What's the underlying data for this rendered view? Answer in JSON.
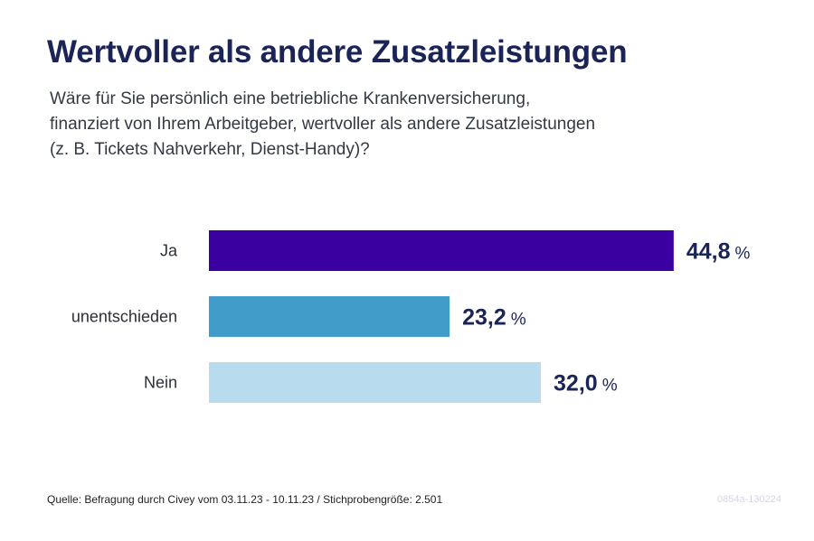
{
  "header": {
    "title": "Wertvoller als andere Zusatzleistungen",
    "subtitle_lines": [
      "Wäre für Sie persönlich eine betriebliche Krankenversicherung,",
      "finanziert von Ihrem Arbeitgeber, wertvoller als andere Zusatzleistungen",
      "(z. B. Tickets Nahverkehr, Dienst-Handy)?"
    ]
  },
  "chart_data": {
    "type": "bar",
    "orientation": "horizontal",
    "categories": [
      "Ja",
      "unentschieden",
      "Nein"
    ],
    "values": [
      44.8,
      23.2,
      32.0
    ],
    "value_labels": [
      "44,8",
      "23,2",
      "32,0"
    ],
    "unit": "%",
    "colors": [
      "#3a00a0",
      "#419cca",
      "#b8dbee"
    ],
    "grid": false,
    "legend": "none"
  },
  "footer": {
    "source": "Quelle: Befragung durch Civey vom 03.11.23 - 10.11.23 / Stichprobengröße: 2.501",
    "code": "0854a-130224"
  }
}
